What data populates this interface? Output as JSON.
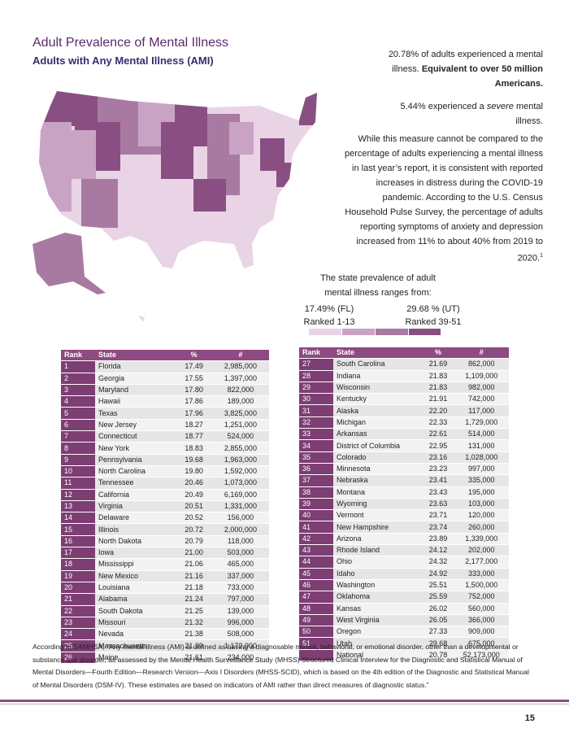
{
  "header": {
    "title": "Adult Prevalence of Mental Illness",
    "subtitle": "Adults with Any Mental Illness (AMI)"
  },
  "sidebar": {
    "p1": {
      "text": "20.78% of adults experienced a mental illness.",
      "bold": "Equivalent to over 50 million Americans."
    },
    "p2": {
      "before": "5.44% experienced a",
      "italic": "severe",
      "after": "mental illness."
    },
    "p3": {
      "text": "While this measure cannot be compared to the percentage of adults experiencing a mental illness in last year’s report, it is consistent with reported increases in distress during the COVID-19 pandemic. According to the U.S. Census Household Pulse Survey, the percentage of adults reporting symptoms of anxiety and depression increased from 11% to about 40% from 2019 to 2020.",
      "note": "1"
    }
  },
  "legend": {
    "intro": "The state prevalence of adult mental illness ranges from:",
    "low": "17.49% (FL)",
    "low_rank": "Ranked 1-13",
    "high": "29.68 % (UT)",
    "high_rank": "Ranked 39-51"
  },
  "table_left": {
    "columns": [
      "Rank",
      "State",
      "%",
      "#"
    ],
    "rows": [
      [
        "1",
        "Florida",
        "17.49",
        "2,985,000"
      ],
      [
        "2",
        "Georgia",
        "17.55",
        "1,397,000"
      ],
      [
        "3",
        "Maryland",
        "17.80",
        "822,000"
      ],
      [
        "4",
        "Hawaii",
        "17.86",
        "189,000"
      ],
      [
        "5",
        "Texas",
        "17.96",
        "3,825,000"
      ],
      [
        "6",
        "New Jersey",
        "18.27",
        "1,251,000"
      ],
      [
        "7",
        "Connecticut",
        "18.77",
        "524,000"
      ],
      [
        "8",
        "New York",
        "18.83",
        "2,855,000"
      ],
      [
        "9",
        "Pennsylvania",
        "19.68",
        "1,963,000"
      ],
      [
        "10",
        "North Carolina",
        "19.80",
        "1,592,000"
      ],
      [
        "11",
        "Tennessee",
        "20.46",
        "1,073,000"
      ],
      [
        "12",
        "California",
        "20.49",
        "6,169,000"
      ],
      [
        "13",
        "Virginia",
        "20.51",
        "1,331,000"
      ],
      [
        "14",
        "Delaware",
        "20.52",
        "156,000"
      ],
      [
        "15",
        "Illinois",
        "20.72",
        "2,000,000"
      ],
      [
        "16",
        "North Dakota",
        "20.79",
        "118,000"
      ],
      [
        "17",
        "Iowa",
        "21.00",
        "503,000"
      ],
      [
        "18",
        "Mississippi",
        "21.06",
        "465,000"
      ],
      [
        "19",
        "New Mexico",
        "21.16",
        "337,000"
      ],
      [
        "20",
        "Louisiana",
        "21.18",
        "733,000"
      ],
      [
        "21",
        "Alabama",
        "21.24",
        "797,000"
      ],
      [
        "22",
        "South Dakota",
        "21.25",
        "139,000"
      ],
      [
        "23",
        "Missouri",
        "21.32",
        "996,000"
      ],
      [
        "24",
        "Nevada",
        "21.38",
        "508,000"
      ],
      [
        "25",
        "Massachusetts",
        "21.39",
        "1,172,000"
      ],
      [
        "26",
        "Maine",
        "21.61",
        "234,000"
      ]
    ]
  },
  "table_right": {
    "columns": [
      "Rank",
      "State",
      "%",
      "#"
    ],
    "rows": [
      [
        "27",
        "South Carolina",
        "21.69",
        "862,000"
      ],
      [
        "28",
        "Indiana",
        "21.83",
        "1,109,000"
      ],
      [
        "29",
        "Wisconsin",
        "21.83",
        "982,000"
      ],
      [
        "30",
        "Kentucky",
        "21.91",
        "742,000"
      ],
      [
        "31",
        "Alaska",
        "22.20",
        "117,000"
      ],
      [
        "32",
        "Michigan",
        "22.33",
        "1,729,000"
      ],
      [
        "33",
        "Arkansas",
        "22.61",
        "514,000"
      ],
      [
        "34",
        "District of Columbia",
        "22.95",
        "131,000"
      ],
      [
        "35",
        "Colorado",
        "23.16",
        "1,028,000"
      ],
      [
        "36",
        "Minnesota",
        "23.23",
        "997,000"
      ],
      [
        "37",
        "Nebraska",
        "23.41",
        "335,000"
      ],
      [
        "38",
        "Montana",
        "23.43",
        "195,000"
      ],
      [
        "39",
        "Wyoming",
        "23.63",
        "103,000"
      ],
      [
        "40",
        "Vermont",
        "23.71",
        "120,000"
      ],
      [
        "41",
        "New Hampshire",
        "23.74",
        "260,000"
      ],
      [
        "42",
        "Arizona",
        "23.89",
        "1,339,000"
      ],
      [
        "43",
        "Rhode Island",
        "24.12",
        "202,000"
      ],
      [
        "44",
        "Ohio",
        "24.32",
        "2,177,000"
      ],
      [
        "45",
        "Idaho",
        "24.92",
        "333,000"
      ],
      [
        "46",
        "Washington",
        "25.51",
        "1,500,000"
      ],
      [
        "47",
        "Oklahoma",
        "25.59",
        "752,000"
      ],
      [
        "48",
        "Kansas",
        "26.02",
        "560,000"
      ],
      [
        "49",
        "West Virginia",
        "26.05",
        "366,000"
      ],
      [
        "50",
        "Oregon",
        "27.33",
        "909,000"
      ],
      [
        "51",
        "Utah",
        "29.68",
        "675,000"
      ]
    ],
    "total": {
      "state": "National",
      "pct": "20.78",
      "count": "52,173,000"
    }
  },
  "footnote": "According to SAMHSA, “Any mental illness (AMI) is defined as having a diagnosable mental, behavioral, or emotional disorder, other than a developmental or substance use disorder, as assessed by the Mental Health Surveillance Study (MHSS) Structured Clinical Interview for the Diagnostic and Statistical Manual of Mental Disorders—Fourth Edition—Research Version—Axis I Disorders (MHSS-SCID), which is based on the 4th edition of the Diagnostic and Statistical Manual of Mental Disorders (DSM-IV). These estimates are based on indicators of AMI rather than direct measures of diagnostic status.”",
  "page_number": "15"
}
